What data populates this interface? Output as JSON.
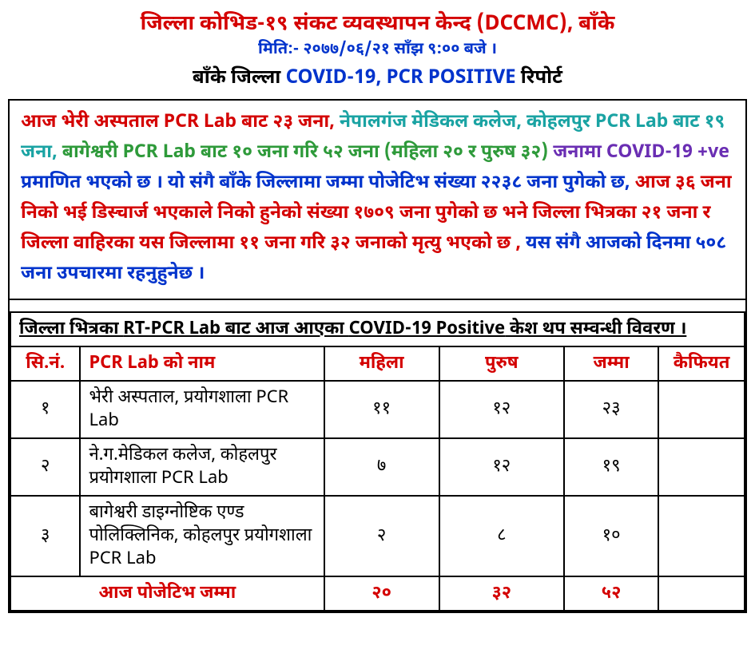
{
  "colors": {
    "red": "#d40000",
    "blue": "#0033cc",
    "black": "#000000",
    "green": "#2e9a3a",
    "teal": "#1aa3a3",
    "purple": "#6a2eb3"
  },
  "header": {
    "line1_pre": "जिल्ला कोभिड-१९ संकट व्यवस्थापन केन्द ",
    "line1_paren": "(DCCMC)",
    "line1_post": ", बाँके",
    "line2": "मिति:- २०७७/०६/२१ साँझ ९:०० बजे ।",
    "line3_a": "बाँके जिल्ला ",
    "line3_b": "COVID-19, PCR POSITIVE ",
    "line3_c": " रिपोर्ट"
  },
  "paragraph": {
    "s1": "आज भेरी अस्पताल ",
    "s2": "PCR Lab",
    "s3": " बाट २३ जना,",
    "s4": " नेपालगंज मेडिकल कलेज, कोहलपुर ",
    "s5": "PCR Lab",
    "s6": " बाट १९ जना,",
    "s7": " बागेश्वरी ",
    "s8": "PCR Lab",
    "s9": " बाट १० जना गरि ५२ जना  (महिला २० र पुरुष ३२) ",
    "s10": "जनामा ",
    "s11": "COVID-19 +ve ",
    "s12": " प्रमाणित भएको छ । यो संगै बाँके जिल्लामा जम्मा पोजेटिभ संख्या २२३८ जना पुगेको छ, ",
    "s13": "आज ३६ जना निको भई डिस्चार्ज भएकाले निको हुनेको संख्या १७०९ जना पुगेको छ भने जिल्ला भित्रका २१ जना र जिल्ला वाहिरका यस जिल्लामा ११ जना गरि ३२ जनाको मृत्यु भएको छ ,",
    "s14": " यस संगै आजको दिनमा ५०८ जना उपचारमा रहनुहुनेछ ।"
  },
  "subtitle": {
    "a": "जिल्ला भित्रका ",
    "b": "RT-PCR Lab",
    "c": " बाट आज आएका ",
    "d": "COVID-19 Positive",
    "e": " केश थप सम्वन्धी विवरण ।"
  },
  "table": {
    "headers": {
      "sn": "सि.नं.",
      "name_a": "PCR Lab",
      "name_b": " को नाम",
      "female": "महिला",
      "male": "पुरुष",
      "total": "जम्मा",
      "remark": "कैफियत"
    },
    "rows": [
      {
        "sn": "१",
        "name": "भेरी अस्पताल, प्रयोगशाला PCR Lab",
        "f": "११",
        "m": "१२",
        "t": "२३",
        "r": ""
      },
      {
        "sn": "२",
        "name": "ने.ग.मेडिकल कलेज, कोहलपुर प्रयोगशाला PCR Lab",
        "f": "७",
        "m": "१२",
        "t": "१९",
        "r": ""
      },
      {
        "sn": "३",
        "name": "बागेश्वरी डाइग्नोष्टिक एण्ड पोलिक्लिनिक, कोहलपुर प्रयोगशाला PCR Lab",
        "f": "२",
        "m": "८",
        "t": "१०",
        "r": ""
      }
    ],
    "total": {
      "label": "आज पोजेटिभ जम्मा",
      "f": "२०",
      "m": "३२",
      "t": "५२",
      "r": ""
    }
  }
}
